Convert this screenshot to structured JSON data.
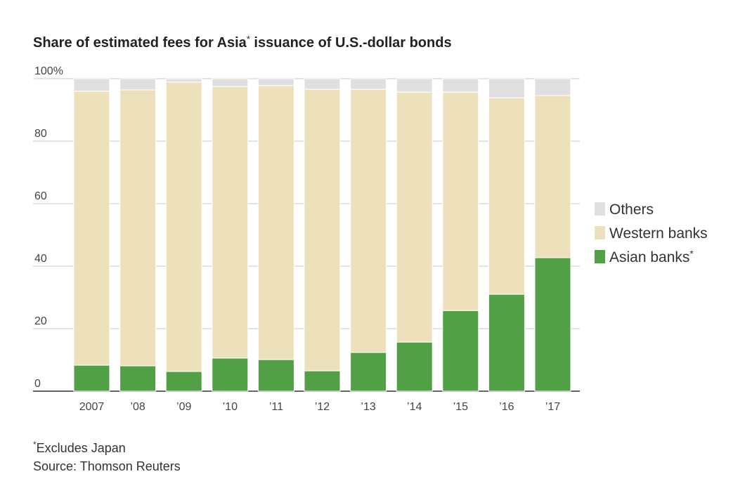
{
  "chart_data": {
    "type": "bar",
    "stacked": true,
    "title": "Share of estimated fees for Asia* issuance of U.S.-dollar bonds",
    "categories": [
      "2007",
      "’08",
      "’09",
      "’10",
      "’11",
      "’12",
      "’13",
      "’14",
      "’15",
      "’16",
      "’17"
    ],
    "series": [
      {
        "name": "Asian banks*",
        "color": "#52a046",
        "values": [
          8.3,
          8.1,
          6.3,
          10.6,
          10.1,
          6.5,
          12.4,
          15.7,
          25.8,
          31.0,
          42.7
        ]
      },
      {
        "name": "Western banks",
        "color": "#ede1bb",
        "values": [
          87.7,
          88.3,
          92.6,
          86.9,
          87.7,
          90.1,
          84.2,
          80.0,
          69.9,
          62.9,
          51.9
        ]
      },
      {
        "name": "Others",
        "color": "#e0e0e2",
        "values": [
          4.0,
          3.6,
          1.1,
          2.5,
          2.2,
          3.4,
          3.4,
          4.3,
          4.3,
          6.1,
          5.4
        ]
      }
    ],
    "ylim": [
      0,
      100
    ],
    "yticks": [
      0,
      20,
      40,
      60,
      80,
      100
    ],
    "ytick_labels": [
      "0",
      "20",
      "40",
      "60",
      "80",
      "100%"
    ],
    "legend_position": "right",
    "grid": true
  },
  "notes": {
    "footnote": "*Excludes Japan",
    "source": "Source: Thomson Reuters"
  }
}
